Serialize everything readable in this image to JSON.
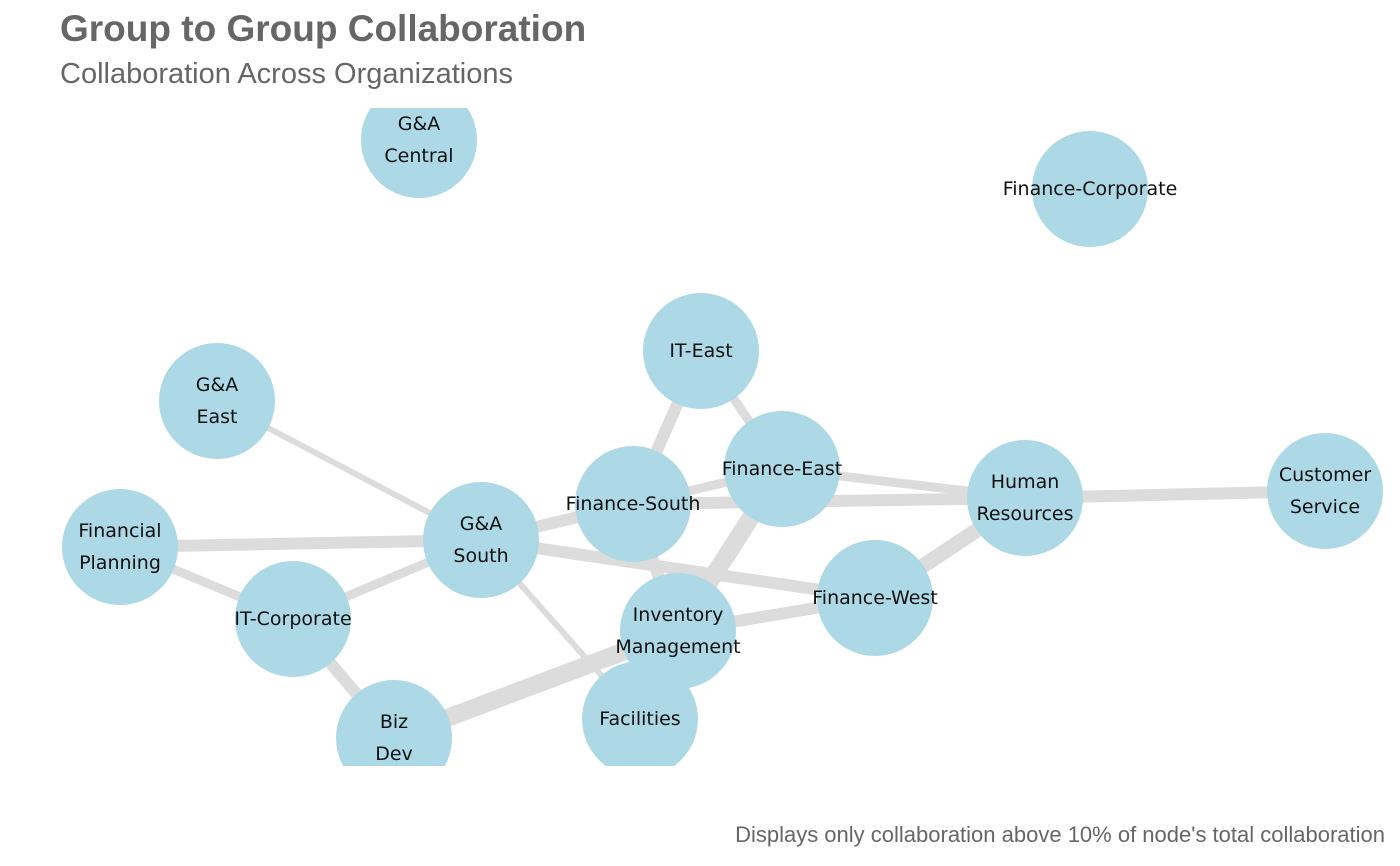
{
  "title": "Group to Group Collaboration",
  "subtitle": "Collaboration Across Organizations",
  "caption": "Displays only collaboration above 10% of node's total collaboration",
  "colors": {
    "node": "#add8e6",
    "edge": "#dcdcdc",
    "text": "#111111",
    "heading": "#666666"
  },
  "nodes": [
    {
      "id": "ga_central",
      "lines": [
        "G&A",
        "Central"
      ]
    },
    {
      "id": "finance_corporate",
      "lines": [
        "Finance-Corporate"
      ]
    },
    {
      "id": "it_east",
      "lines": [
        "IT-East"
      ]
    },
    {
      "id": "ga_east",
      "lines": [
        "G&A",
        "East"
      ]
    },
    {
      "id": "finance_east",
      "lines": [
        "Finance-East"
      ]
    },
    {
      "id": "human_resources",
      "lines": [
        "Human",
        "Resources"
      ]
    },
    {
      "id": "customer_service",
      "lines": [
        "Customer",
        "Service"
      ]
    },
    {
      "id": "finance_south",
      "lines": [
        "Finance-South"
      ]
    },
    {
      "id": "ga_south",
      "lines": [
        "G&A",
        "South"
      ]
    },
    {
      "id": "financial_planning",
      "lines": [
        "Financial",
        "Planning"
      ]
    },
    {
      "id": "finance_west",
      "lines": [
        "Finance-West"
      ]
    },
    {
      "id": "it_corporate",
      "lines": [
        "IT-Corporate"
      ]
    },
    {
      "id": "inventory_management",
      "lines": [
        "Inventory",
        "Management"
      ]
    },
    {
      "id": "biz_dev",
      "lines": [
        "Biz",
        "Dev"
      ]
    },
    {
      "id": "facilities",
      "lines": [
        "Facilities"
      ]
    }
  ],
  "edges": [
    {
      "from": "ga_east",
      "to": "ga_south",
      "weight": 1
    },
    {
      "from": "financial_planning",
      "to": "ga_south",
      "weight": 3
    },
    {
      "from": "financial_planning",
      "to": "it_corporate",
      "weight": 2
    },
    {
      "from": "it_corporate",
      "to": "ga_south",
      "weight": 2
    },
    {
      "from": "it_corporate",
      "to": "biz_dev",
      "weight": 3
    },
    {
      "from": "biz_dev",
      "to": "inventory_management",
      "weight": 5
    },
    {
      "from": "ga_south",
      "to": "facilities",
      "weight": 1
    },
    {
      "from": "ga_south",
      "to": "finance_west",
      "weight": 3
    },
    {
      "from": "ga_south",
      "to": "finance_south",
      "weight": 3
    },
    {
      "from": "ga_south",
      "to": "finance_east",
      "weight": 2
    },
    {
      "from": "it_east",
      "to": "finance_south",
      "weight": 3
    },
    {
      "from": "it_east",
      "to": "finance_east",
      "weight": 2
    },
    {
      "from": "finance_south",
      "to": "human_resources",
      "weight": 3
    },
    {
      "from": "finance_east",
      "to": "human_resources",
      "weight": 2
    },
    {
      "from": "finance_east",
      "to": "inventory_management",
      "weight": 5
    },
    {
      "from": "finance_south",
      "to": "inventory_management",
      "weight": 3
    },
    {
      "from": "inventory_management",
      "to": "finance_west",
      "weight": 3
    },
    {
      "from": "human_resources",
      "to": "finance_west",
      "weight": 4
    },
    {
      "from": "human_resources",
      "to": "customer_service",
      "weight": 3
    },
    {
      "from": "inventory_management",
      "to": "facilities",
      "weight": 2
    }
  ]
}
